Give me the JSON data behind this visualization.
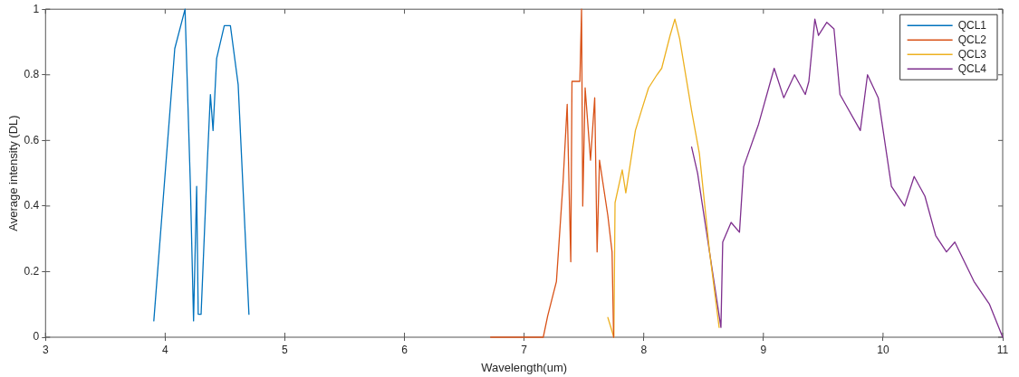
{
  "chart_data": {
    "type": "line",
    "xlabel": "Wavelength(um)",
    "ylabel": "Average intensity (DL)",
    "xlim": [
      3,
      11
    ],
    "xticks": [
      3,
      4,
      5,
      6,
      7,
      8,
      9,
      10,
      11
    ],
    "ylim": [
      0,
      1
    ],
    "yticks": [
      0,
      0.2,
      0.4,
      0.6,
      0.8,
      1
    ],
    "legend": "top right",
    "marker": "none",
    "line_style": "solid",
    "series": [
      {
        "name": "QCL1",
        "color": "#0072bd",
        "x": [
          3.905,
          4.08,
          4.166,
          4.21,
          4.237,
          4.263,
          4.276,
          4.3,
          4.353,
          4.378,
          4.4,
          4.43,
          4.494,
          4.545,
          4.61,
          4.7
        ],
        "values": [
          0.05,
          0.88,
          1.0,
          0.47,
          0.05,
          0.46,
          0.07,
          0.07,
          0.54,
          0.74,
          0.63,
          0.85,
          0.95,
          0.95,
          0.77,
          0.07
        ]
      },
      {
        "name": "QCL2",
        "color": "#d95319",
        "x": [
          6.72,
          7.16,
          7.197,
          7.27,
          7.325,
          7.36,
          7.39,
          7.4,
          7.466,
          7.48,
          7.49,
          7.51,
          7.555,
          7.59,
          7.61,
          7.63,
          7.7,
          7.735,
          7.748
        ],
        "values": [
          0,
          0,
          0.065,
          0.17,
          0.47,
          0.71,
          0.23,
          0.78,
          0.78,
          1.0,
          0.4,
          0.76,
          0.54,
          0.73,
          0.26,
          0.54,
          0.37,
          0.26,
          0
        ]
      },
      {
        "name": "QCL3",
        "color": "#edb120",
        "x": [
          7.7,
          7.75,
          7.76,
          7.82,
          7.85,
          7.93,
          7.98,
          8.04,
          8.11,
          8.15,
          8.22,
          8.26,
          8.3,
          8.4,
          8.465,
          8.55,
          8.63
        ],
        "values": [
          0.06,
          0,
          0.41,
          0.51,
          0.44,
          0.63,
          0.69,
          0.76,
          0.8,
          0.82,
          0.92,
          0.97,
          0.91,
          0.69,
          0.56,
          0.26,
          0.03
        ]
      },
      {
        "name": "QCL4",
        "color": "#7e2f8e",
        "x": [
          8.4,
          8.45,
          8.645,
          8.66,
          8.73,
          8.8,
          8.835,
          8.96,
          9.09,
          9.17,
          9.26,
          9.35,
          9.38,
          9.43,
          9.46,
          9.53,
          9.59,
          9.64,
          9.81,
          9.87,
          9.96,
          10.07,
          10.18,
          10.26,
          10.35,
          10.44,
          10.53,
          10.6,
          10.76,
          10.89,
          11.0
        ],
        "values": [
          0.58,
          0.5,
          0.03,
          0.29,
          0.35,
          0.32,
          0.52,
          0.65,
          0.82,
          0.73,
          0.8,
          0.74,
          0.78,
          0.97,
          0.92,
          0.96,
          0.94,
          0.74,
          0.63,
          0.8,
          0.73,
          0.46,
          0.4,
          0.49,
          0.43,
          0.31,
          0.26,
          0.29,
          0.17,
          0.1,
          0
        ]
      }
    ]
  }
}
